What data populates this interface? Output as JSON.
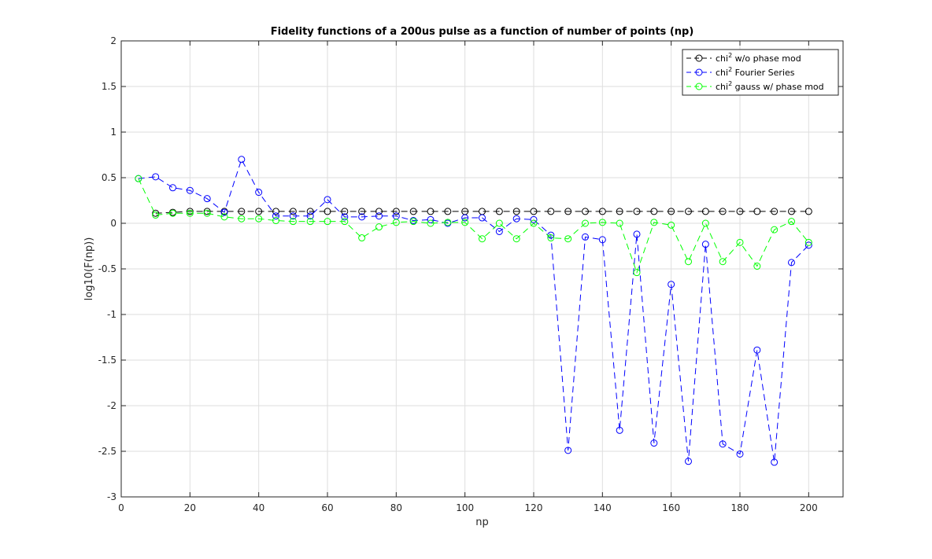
{
  "chart_data": {
    "type": "line",
    "title": "Fidelity functions of a 200us pulse as a function of number of points (np)",
    "xlabel": "np",
    "ylabel": "log10(F(np))",
    "xlim": [
      0,
      210
    ],
    "ylim": [
      -3,
      2
    ],
    "xticks": [
      "0",
      "20",
      "40",
      "60",
      "80",
      "100",
      "120",
      "140",
      "160",
      "180",
      "200"
    ],
    "yticks": [
      "-3",
      "-2.5",
      "-2",
      "-1.5",
      "-1",
      "-0.5",
      "0",
      "0.5",
      "1",
      "1.5",
      "2"
    ],
    "grid": true,
    "legend_position": "top-right",
    "series": [
      {
        "name": "chi",
        "name_sup": "2",
        "name_rest": " w/o phase mod",
        "color": "#000000",
        "x": [
          10,
          15,
          20,
          25,
          30,
          35,
          40,
          45,
          50,
          55,
          60,
          65,
          70,
          75,
          80,
          85,
          90,
          95,
          100,
          105,
          110,
          115,
          120,
          125,
          130,
          135,
          140,
          145,
          150,
          155,
          160,
          165,
          170,
          175,
          180,
          185,
          190,
          195,
          200
        ],
        "y": [
          0.11,
          0.12,
          0.13,
          0.13,
          0.13,
          0.13,
          0.13,
          0.13,
          0.13,
          0.13,
          0.13,
          0.13,
          0.13,
          0.13,
          0.13,
          0.13,
          0.13,
          0.13,
          0.13,
          0.13,
          0.13,
          0.13,
          0.13,
          0.13,
          0.13,
          0.13,
          0.13,
          0.13,
          0.13,
          0.13,
          0.13,
          0.13,
          0.13,
          0.13,
          0.13,
          0.13,
          0.13,
          0.13,
          0.13
        ]
      },
      {
        "name": "chi",
        "name_sup": "2",
        "name_rest": " Fourier Series",
        "color": "#0000ff",
        "x": [
          5,
          10,
          15,
          20,
          25,
          30,
          35,
          40,
          45,
          50,
          55,
          60,
          65,
          70,
          75,
          80,
          85,
          90,
          95,
          100,
          105,
          110,
          115,
          120,
          125,
          130,
          135,
          140,
          145,
          150,
          155,
          160,
          165,
          170,
          175,
          180,
          185,
          190,
          195,
          200
        ],
        "y": [
          0.49,
          0.51,
          0.39,
          0.36,
          0.27,
          0.12,
          0.7,
          0.34,
          0.08,
          0.08,
          0.08,
          0.26,
          0.07,
          0.07,
          0.08,
          0.08,
          0.03,
          0.04,
          0.0,
          0.06,
          0.06,
          -0.09,
          0.05,
          0.04,
          -0.13,
          -2.49,
          -0.15,
          -0.18,
          -2.27,
          -0.12,
          -2.41,
          -0.67,
          -2.61,
          -0.23,
          -2.42,
          -2.53,
          -1.39,
          -2.62,
          -0.43,
          -0.24
        ]
      },
      {
        "name": "chi",
        "name_sup": "2",
        "name_rest": " gauss w/ phase mod",
        "color": "#00ff00",
        "x": [
          5,
          10,
          15,
          20,
          25,
          30,
          35,
          40,
          45,
          50,
          55,
          60,
          65,
          70,
          75,
          80,
          85,
          90,
          95,
          100,
          105,
          110,
          115,
          120,
          125,
          130,
          135,
          140,
          145,
          150,
          155,
          160,
          165,
          170,
          175,
          180,
          185,
          190,
          195,
          200
        ],
        "y": [
          0.49,
          0.09,
          0.11,
          0.11,
          0.11,
          0.07,
          0.05,
          0.05,
          0.03,
          0.02,
          0.02,
          0.02,
          0.02,
          -0.16,
          -0.04,
          0.01,
          0.02,
          0.0,
          0.01,
          0.01,
          -0.17,
          0.0,
          -0.17,
          0.0,
          -0.16,
          -0.17,
          0.0,
          0.01,
          0.0,
          -0.54,
          0.01,
          -0.02,
          -0.42,
          0.0,
          -0.42,
          -0.21,
          -0.47,
          -0.07,
          0.02,
          -0.21
        ]
      }
    ]
  }
}
